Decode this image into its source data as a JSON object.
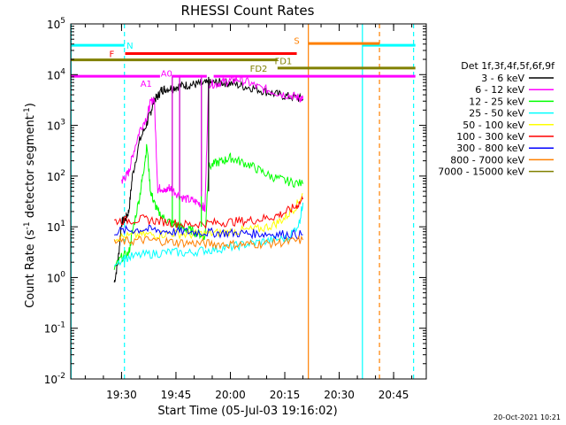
{
  "chart_data": {
    "type": "line",
    "title": "RHESSI Count Rates",
    "xlabel": "Start Time (05-Jul-03 19:16:02)",
    "ylabel_main": "Count Rate (s",
    "ylabel_sup1": "-1",
    "ylabel_mid": " detector segment",
    "ylabel_sup2": "-1",
    "ylabel_end": ")",
    "footer_timestamp": "20-Oct-2021 10:21",
    "y_scale": "log",
    "xlim_minutes": [
      1156,
      1254
    ],
    "ylim": [
      0.01,
      100000
    ],
    "x_ticks": [
      {
        "label": "19:30",
        "minutes": 1170
      },
      {
        "label": "19:45",
        "minutes": 1185
      },
      {
        "label": "20:00",
        "minutes": 1200
      },
      {
        "label": "20:15",
        "minutes": 1215
      },
      {
        "label": "20:30",
        "minutes": 1230
      },
      {
        "label": "20:45",
        "minutes": 1245
      }
    ],
    "y_ticks": [
      {
        "base": "10",
        "exp": "-2",
        "value": 0.01
      },
      {
        "base": "10",
        "exp": "-1",
        "value": 0.1
      },
      {
        "base": "10",
        "exp": "0",
        "value": 1
      },
      {
        "base": "10",
        "exp": "1",
        "value": 10
      },
      {
        "base": "10",
        "exp": "2",
        "value": 100
      },
      {
        "base": "10",
        "exp": "3",
        "value": 1000
      },
      {
        "base": "10",
        "exp": "4",
        "value": 10000
      },
      {
        "base": "10",
        "exp": "5",
        "value": 100000
      }
    ],
    "legend_title": "Det 1f,3f,4f,5f,6f,9f",
    "legend_placement": "right",
    "series": [
      {
        "name": "3 - 6 keV",
        "color": "#000000",
        "points": [
          [
            1168,
            0.8
          ],
          [
            1169,
            2
          ],
          [
            1170,
            12
          ],
          [
            1171,
            14
          ],
          [
            1172,
            20
          ],
          [
            1173,
            100
          ],
          [
            1175,
            500
          ],
          [
            1177,
            1100
          ],
          [
            1178,
            1800
          ],
          [
            1179,
            3200
          ],
          [
            1180,
            3700
          ],
          [
            1181,
            5000
          ],
          [
            1182,
            5200
          ],
          [
            1184,
            5500
          ],
          [
            1186,
            6000
          ],
          [
            1188,
            6200
          ],
          [
            1190,
            6400
          ],
          [
            1192,
            6600
          ],
          [
            1194,
            6700
          ],
          [
            1196,
            6900
          ],
          [
            1198,
            7000
          ],
          [
            1200,
            6800
          ],
          [
            1203,
            6000
          ],
          [
            1206,
            5500
          ],
          [
            1209,
            4800
          ],
          [
            1212,
            4200
          ],
          [
            1215,
            3800
          ],
          [
            1218,
            3500
          ],
          [
            1220,
            3300
          ]
        ]
      },
      {
        "name": "6 - 12 keV",
        "color": "#ff00ff",
        "points": [
          [
            1170,
            80
          ],
          [
            1171,
            95
          ],
          [
            1172,
            120
          ],
          [
            1173,
            250
          ],
          [
            1175,
            800
          ],
          [
            1177,
            1500
          ],
          [
            1178,
            2800
          ],
          [
            1179,
            3500
          ],
          [
            1180,
            55
          ],
          [
            1181,
            60
          ],
          [
            1182,
            48
          ],
          [
            1183,
            60
          ],
          [
            1184,
            55
          ],
          [
            1186,
            40
          ],
          [
            1188,
            35
          ],
          [
            1190,
            32
          ],
          [
            1192,
            28
          ],
          [
            1193,
            22
          ],
          [
            1194,
            6800
          ],
          [
            1196,
            6500
          ],
          [
            1198,
            7200
          ],
          [
            1200,
            7500
          ],
          [
            1202,
            8200
          ],
          [
            1205,
            7000
          ],
          [
            1208,
            5500
          ],
          [
            1211,
            4800
          ],
          [
            1214,
            4200
          ],
          [
            1217,
            3800
          ],
          [
            1219,
            3500
          ],
          [
            1220,
            3300
          ]
        ]
      },
      {
        "name": "12 - 25 keV",
        "color": "#00ff00",
        "points": [
          [
            1168,
            1.5
          ],
          [
            1170,
            2.5
          ],
          [
            1172,
            3
          ],
          [
            1173,
            8
          ],
          [
            1175,
            40
          ],
          [
            1176,
            120
          ],
          [
            1177,
            400
          ],
          [
            1178,
            50
          ],
          [
            1179,
            30
          ],
          [
            1180,
            20
          ],
          [
            1182,
            14
          ],
          [
            1184,
            12
          ],
          [
            1186,
            10
          ],
          [
            1188,
            9
          ],
          [
            1190,
            8
          ],
          [
            1192,
            7
          ],
          [
            1193,
            6
          ],
          [
            1194,
            150
          ],
          [
            1196,
            180
          ],
          [
            1198,
            200
          ],
          [
            1200,
            230
          ],
          [
            1202,
            200
          ],
          [
            1205,
            170
          ],
          [
            1208,
            130
          ],
          [
            1211,
            100
          ],
          [
            1214,
            85
          ],
          [
            1217,
            75
          ],
          [
            1220,
            70
          ]
        ]
      },
      {
        "name": "25 - 50 keV",
        "color": "#00ffff",
        "points": [
          [
            1168,
            2
          ],
          [
            1172,
            2.5
          ],
          [
            1176,
            2.8
          ],
          [
            1180,
            3
          ],
          [
            1184,
            3.2
          ],
          [
            1188,
            3
          ],
          [
            1192,
            3.4
          ],
          [
            1196,
            3.6
          ],
          [
            1200,
            4
          ],
          [
            1204,
            4.5
          ],
          [
            1208,
            5
          ],
          [
            1212,
            5.5
          ],
          [
            1216,
            6
          ],
          [
            1219,
            12
          ],
          [
            1220,
            30
          ]
        ]
      },
      {
        "name": "50 - 100 keV",
        "color": "#ffff00",
        "points": [
          [
            1168,
            6
          ],
          [
            1172,
            6.5
          ],
          [
            1176,
            7
          ],
          [
            1180,
            7
          ],
          [
            1184,
            7.5
          ],
          [
            1188,
            7
          ],
          [
            1192,
            7.2
          ],
          [
            1196,
            7.5
          ],
          [
            1200,
            8
          ],
          [
            1204,
            8.5
          ],
          [
            1208,
            9
          ],
          [
            1212,
            11
          ],
          [
            1215,
            15
          ],
          [
            1218,
            25
          ],
          [
            1220,
            45
          ]
        ]
      },
      {
        "name": "100 - 300 keV",
        "color": "#ff0000",
        "points": [
          [
            1168,
            13
          ],
          [
            1172,
            13.5
          ],
          [
            1176,
            14
          ],
          [
            1180,
            13
          ],
          [
            1184,
            12
          ],
          [
            1188,
            11
          ],
          [
            1192,
            11.5
          ],
          [
            1196,
            12
          ],
          [
            1200,
            12.5
          ],
          [
            1204,
            13
          ],
          [
            1208,
            14
          ],
          [
            1212,
            16
          ],
          [
            1215,
            19
          ],
          [
            1218,
            25
          ],
          [
            1220,
            35
          ]
        ]
      },
      {
        "name": "300 - 800 keV",
        "color": "#0000ff",
        "points": [
          [
            1168,
            8
          ],
          [
            1172,
            8.5
          ],
          [
            1176,
            9
          ],
          [
            1180,
            8.5
          ],
          [
            1184,
            8
          ],
          [
            1188,
            8
          ],
          [
            1192,
            7.8
          ],
          [
            1196,
            7.6
          ],
          [
            1200,
            7.5
          ],
          [
            1204,
            7.4
          ],
          [
            1208,
            7.3
          ],
          [
            1212,
            7.2
          ],
          [
            1216,
            7.1
          ],
          [
            1220,
            7
          ]
        ]
      },
      {
        "name": "800 - 7000 keV",
        "color": "#ff8000",
        "points": [
          [
            1168,
            5
          ],
          [
            1172,
            5.2
          ],
          [
            1176,
            5.5
          ],
          [
            1180,
            5.3
          ],
          [
            1184,
            5
          ],
          [
            1188,
            4.8
          ],
          [
            1192,
            4.7
          ],
          [
            1196,
            4.6
          ],
          [
            1200,
            4.5
          ],
          [
            1204,
            4.5
          ],
          [
            1208,
            4.6
          ],
          [
            1212,
            4.8
          ],
          [
            1216,
            5
          ],
          [
            1220,
            5.5
          ]
        ]
      },
      {
        "name": "7000 - 15000 keV",
        "color": "#808000",
        "points": []
      }
    ],
    "spike_series": [
      {
        "color": "#000000",
        "x": [
          1184,
          1186,
          1192,
          1194
        ],
        "from": 50,
        "to": 9000
      },
      {
        "color": "#00ff00",
        "x": [
          1184,
          1186,
          1192
        ],
        "from": 10,
        "to": 9500
      },
      {
        "color": "#ff00ff",
        "x": [
          1184,
          1186,
          1192
        ],
        "from": 40,
        "to": 9800
      }
    ],
    "vertical_lines": [
      {
        "color": "#00ffff",
        "style": "solid",
        "x": 1156.1
      },
      {
        "color": "#00ffff",
        "style": "dashed",
        "x": 1170.8
      },
      {
        "color": "#ff8000",
        "style": "solid",
        "x": 1221.5
      },
      {
        "color": "#00ffff",
        "style": "solid",
        "x": 1236.4
      },
      {
        "color": "#ff8000",
        "style": "dashed",
        "x": 1241.1
      },
      {
        "color": "#00ffff",
        "style": "dashed",
        "x": 1250.5
      }
    ],
    "flag_bars": [
      {
        "label": "N",
        "color": "#00ffff",
        "y": 38000,
        "segments": [
          [
            1156,
            1170.8
          ],
          [
            1236.4,
            1251
          ]
        ],
        "label_x": 1172.3,
        "label_y": 38000
      },
      {
        "label": "S",
        "color": "#ff8000",
        "y": 41000,
        "segments": [
          [
            1221.5,
            1241.1
          ]
        ],
        "label_x": 1218.3,
        "label_y": 48000
      },
      {
        "label": "F",
        "color": "#ff0000",
        "y": 26000,
        "segments": [
          [
            1171,
            1218.3
          ]
        ],
        "label_x": 1167.3,
        "label_y": 26000
      },
      {
        "label": "FD1",
        "color": "#808000",
        "y": 19500,
        "segments": [
          [
            1156,
            1213
          ]
        ],
        "label_x": 1214.6,
        "label_y": 19000
      },
      {
        "label": "FD2",
        "color": "#808000",
        "y": 13500,
        "segments": [
          [
            1213,
            1251
          ]
        ],
        "label_x": 1207.8,
        "label_y": 13500
      },
      {
        "label": "A1",
        "color": "#ff00ff",
        "y": 9300,
        "segments": [
          [
            1156,
            1180.6
          ]
        ],
        "label_x": 1176.8,
        "label_y": 6800
      },
      {
        "label": "A0",
        "color": "#ff00ff",
        "y": 9300,
        "segments": [
          [
            1183.9,
            1193.5
          ],
          [
            1195.4,
            1251
          ]
        ],
        "label_x": 1182.4,
        "label_y": 10800
      }
    ]
  }
}
